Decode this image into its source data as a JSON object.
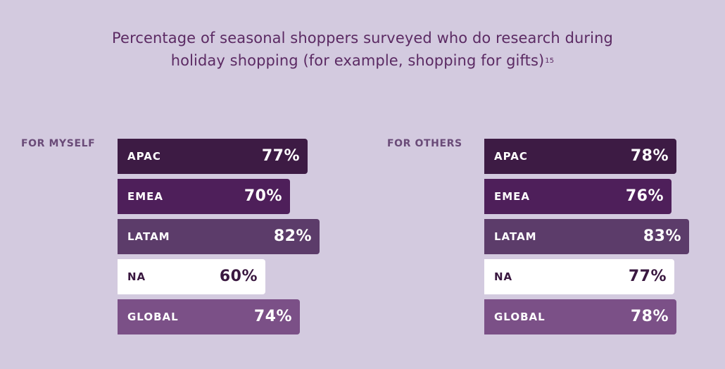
{
  "chart_data": {
    "type": "bar",
    "title": "Percentage of seasonal shoppers surveyed who do research during holiday shopping (for example, shopping for gifts)",
    "title_line1": "Percentage of seasonal shoppers surveyed who do research during",
    "title_line2": "holiday shopping (for example, shopping for gifts)",
    "footnote": "15",
    "categories": [
      "APAC",
      "EMEA",
      "LATAM",
      "NA",
      "GLOBAL"
    ],
    "series": [
      {
        "name": "FOR MYSELF",
        "values": [
          77,
          70,
          82,
          60,
          74
        ],
        "labels": [
          "77%",
          "70%",
          "82%",
          "60%",
          "74%"
        ]
      },
      {
        "name": "FOR OTHERS",
        "values": [
          78,
          76,
          83,
          77,
          78
        ],
        "labels": [
          "78%",
          "76%",
          "83%",
          "77%",
          "78%"
        ]
      }
    ],
    "colors": {
      "APAC": "#3d1b44",
      "EMEA": "#4e1f5a",
      "LATAM": "#5c3c6a",
      "NA": "#ffffff",
      "GLOBAL": "#7b5087"
    },
    "text_colors": {
      "APAC": "#ffffff",
      "EMEA": "#ffffff",
      "LATAM": "#ffffff",
      "NA": "#3a1840",
      "GLOBAL": "#ffffff"
    },
    "orientation": "horizontal"
  }
}
